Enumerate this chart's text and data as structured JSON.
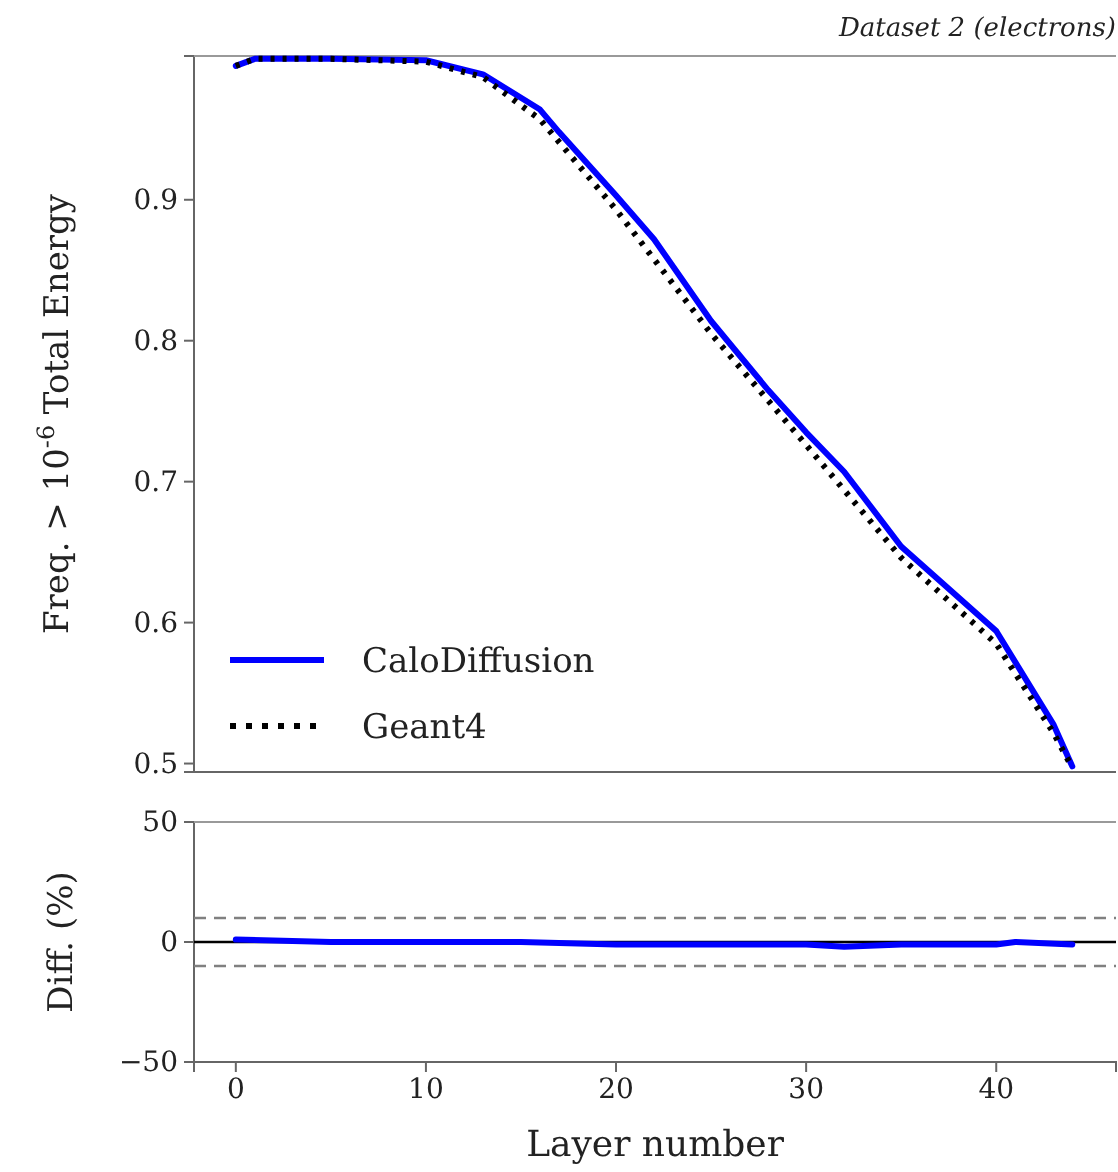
{
  "chart_data": [
    {
      "type": "line",
      "title": "Dataset 2 (electrons)",
      "ylabel": "Freq. > 10$^{-6}$ Total Energy",
      "xlim": [
        -2.2,
        46.3
      ],
      "xticks": [
        0,
        10,
        20,
        30,
        40
      ],
      "ylim": [
        0.494,
        1.002
      ],
      "yticks": [
        0.5,
        0.6,
        0.7,
        0.8,
        0.9
      ],
      "tick_labels": "y",
      "legend": "bottom left",
      "grid": false,
      "series": [
        {
          "name": "CaloDiffusion",
          "color": "#0000ff",
          "line_style": "solid",
          "x": [
            0,
            1,
            5,
            10,
            13,
            16,
            17,
            20,
            22,
            25,
            28,
            30,
            32,
            35,
            40,
            43,
            44
          ],
          "values": [
            0.995,
            1.0,
            1.0,
            0.999,
            0.989,
            0.964,
            0.948,
            0.903,
            0.872,
            0.814,
            0.765,
            0.735,
            0.707,
            0.654,
            0.594,
            0.528,
            0.498
          ]
        },
        {
          "name": "Geant4",
          "color": "#000000",
          "line_style": "dotted",
          "x": [
            0,
            1,
            5,
            10,
            13,
            16,
            20,
            25,
            30,
            35,
            40,
            43,
            44
          ],
          "values": [
            0.995,
            1.0,
            1.0,
            0.998,
            0.987,
            0.957,
            0.893,
            0.805,
            0.726,
            0.646,
            0.585,
            0.522,
            0.497
          ]
        }
      ]
    },
    {
      "type": "line",
      "xlabel": "Layer number",
      "ylabel": "Diff. (%)",
      "xlim": [
        -2.2,
        46.3
      ],
      "xticks": [
        0,
        10,
        20,
        30,
        40
      ],
      "ylim": [
        -50,
        50
      ],
      "yticks": [
        {
          "value": -50,
          "label": "−50"
        },
        0,
        50
      ],
      "grid": false,
      "ref_lines": [
        {
          "axis": "y",
          "value": 10,
          "color": "#808080",
          "line_style": "dashed"
        },
        {
          "axis": "y",
          "value": -10,
          "color": "#808080",
          "line_style": "dashed"
        },
        {
          "axis": "y",
          "value": 0,
          "color": "#000000",
          "line_style": "solid"
        }
      ],
      "series": [
        {
          "color": "#0000ff",
          "line_style": "solid",
          "x": [
            0,
            5,
            10,
            15,
            20,
            25,
            30,
            32,
            35,
            40,
            41,
            44
          ],
          "values": [
            1,
            0,
            0,
            0,
            -1,
            -1,
            -1,
            -2,
            -1,
            -1,
            0,
            -1
          ]
        }
      ]
    }
  ]
}
